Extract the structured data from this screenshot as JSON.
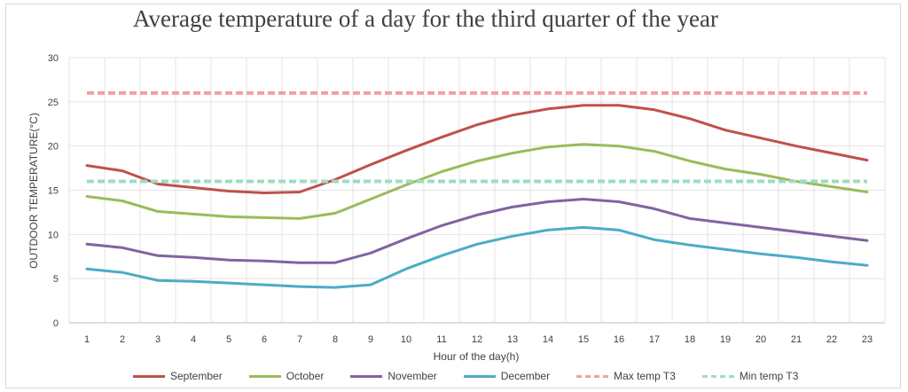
{
  "chart_data": {
    "type": "line",
    "title": "Average temperature of a day for the third quarter of the year",
    "xlabel": "Hour of the day(h)",
    "ylabel": "OUTDOOR TEMPERATURE(°C)",
    "ylim": [
      0,
      30
    ],
    "yticks": [
      "0",
      "5",
      "10",
      "15",
      "20",
      "25",
      "30"
    ],
    "x": [
      "1",
      "2",
      "3",
      "4",
      "5",
      "6",
      "7",
      "8",
      "9",
      "10",
      "11",
      "12",
      "13",
      "14",
      "15",
      "16",
      "17",
      "18",
      "19",
      "20",
      "21",
      "22",
      "23"
    ],
    "grid": "on",
    "legend_position": "bottom",
    "series": [
      {
        "name": "September",
        "color": "#c0504d",
        "style": "solid",
        "values": [
          17.8,
          17.2,
          15.7,
          15.3,
          14.9,
          14.7,
          14.8,
          16.2,
          17.9,
          19.5,
          21.0,
          22.4,
          23.5,
          24.2,
          24.6,
          24.6,
          24.1,
          23.1,
          21.8,
          20.9,
          20.0,
          19.2,
          18.4
        ]
      },
      {
        "name": "October",
        "color": "#9bbb59",
        "style": "solid",
        "values": [
          14.3,
          13.8,
          12.6,
          12.3,
          12.0,
          11.9,
          11.8,
          12.4,
          14.0,
          15.6,
          17.1,
          18.3,
          19.2,
          19.9,
          20.2,
          20.0,
          19.4,
          18.3,
          17.4,
          16.8,
          16.0,
          15.4,
          14.8
        ]
      },
      {
        "name": "November",
        "color": "#8064a2",
        "style": "solid",
        "values": [
          8.9,
          8.5,
          7.6,
          7.4,
          7.1,
          7.0,
          6.8,
          6.8,
          7.9,
          9.5,
          11.0,
          12.2,
          13.1,
          13.7,
          14.0,
          13.7,
          12.9,
          11.8,
          11.3,
          10.8,
          10.3,
          9.8,
          9.3
        ]
      },
      {
        "name": "December",
        "color": "#4bacc6",
        "style": "solid",
        "values": [
          6.1,
          5.7,
          4.8,
          4.7,
          4.5,
          4.3,
          4.1,
          4.0,
          4.3,
          6.1,
          7.6,
          8.9,
          9.8,
          10.5,
          10.8,
          10.5,
          9.4,
          8.8,
          8.3,
          7.8,
          7.4,
          6.9,
          6.5
        ]
      },
      {
        "name": "Max temp T3",
        "color": "#f4a09e",
        "style": "dashed",
        "values": [
          26,
          26,
          26,
          26,
          26,
          26,
          26,
          26,
          26,
          26,
          26,
          26,
          26,
          26,
          26,
          26,
          26,
          26,
          26,
          26,
          26,
          26,
          26
        ]
      },
      {
        "name": "Min temp T3",
        "color": "#9ddcc2",
        "style": "dashed",
        "values": [
          16,
          16,
          16,
          16,
          16,
          16,
          16,
          16,
          16,
          16,
          16,
          16,
          16,
          16,
          16,
          16,
          16,
          16,
          16,
          16,
          16,
          16,
          16
        ]
      }
    ]
  }
}
